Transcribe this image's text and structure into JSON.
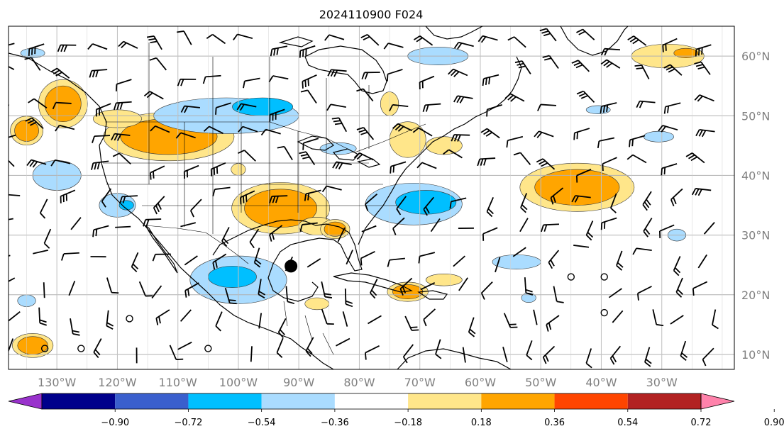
{
  "title": "2024110900 F024",
  "map": {
    "lon_range": [
      -138,
      -18
    ],
    "lat_range": [
      7.5,
      65
    ],
    "lon_ticks": [
      {
        "lon": -130,
        "label": "130°W"
      },
      {
        "lon": -120,
        "label": "120°W"
      },
      {
        "lon": -110,
        "label": "110°W"
      },
      {
        "lon": -100,
        "label": "100°W"
      },
      {
        "lon": -90,
        "label": "90°W"
      },
      {
        "lon": -80,
        "label": "80°W"
      },
      {
        "lon": -70,
        "label": "70°W"
      },
      {
        "lon": -60,
        "label": "60°W"
      },
      {
        "lon": -50,
        "label": "50°W"
      },
      {
        "lon": -40,
        "label": "40°W"
      },
      {
        "lon": -30,
        "label": "30°W"
      }
    ],
    "lat_ticks": [
      {
        "lat": 60,
        "label": "60°N"
      },
      {
        "lat": 50,
        "label": "50°N"
      },
      {
        "lat": 40,
        "label": "40°N"
      },
      {
        "lat": 30,
        "label": "30°N"
      },
      {
        "lat": 20,
        "label": "20°N"
      },
      {
        "lat": 10,
        "label": "10°N"
      }
    ],
    "grid": true,
    "storm_marker": {
      "lon": -91.3,
      "lat": 24.8
    }
  },
  "colorbar": {
    "boundaries": [
      "−0.90",
      "−0.72",
      "−0.54",
      "−0.36",
      "−0.18",
      "0.18",
      "0.36",
      "0.54",
      "0.72",
      "0.90"
    ],
    "colors": [
      "#9932cc",
      "#00008b",
      "#3a5fcd",
      "#00bfff",
      "#aadcff",
      "#ffffff",
      "#ffe68a",
      "#ffa500",
      "#ff4500",
      "#b22222",
      "#ff82ab"
    ],
    "extend": "both"
  },
  "anomalies": [
    {
      "lon": -111.5,
      "lat": 46.5,
      "rx": 8,
      "ry": 3,
      "level": 0.45,
      "edge": 0.25
    },
    {
      "lon": -93,
      "lat": 34.5,
      "rx": 6,
      "ry": 3.2,
      "level": 0.45,
      "edge": 0.25
    },
    {
      "lon": -87,
      "lat": 31.5,
      "rx": 3,
      "ry": 1.5,
      "level": 0.25
    },
    {
      "lon": -84,
      "lat": 31,
      "rx": 1.8,
      "ry": 1.2,
      "level": 0.45,
      "edge": 0.25
    },
    {
      "lon": -44,
      "lat": 38,
      "rx": 7,
      "ry": 3,
      "level": 0.45,
      "edge": 0.25
    },
    {
      "lon": -129,
      "lat": 52,
      "rx": 3,
      "ry": 3,
      "level": 0.45,
      "edge": 0.25
    },
    {
      "lon": -120,
      "lat": 49.5,
      "rx": 4,
      "ry": 1.5,
      "level": 0.25
    },
    {
      "lon": -135,
      "lat": 47.5,
      "rx": 2,
      "ry": 1.8,
      "level": 0.45,
      "edge": 0.25
    },
    {
      "lon": -134,
      "lat": 11.5,
      "rx": 2.5,
      "ry": 1.5,
      "level": 0.45,
      "edge": 0.25
    },
    {
      "lon": -72,
      "lat": 20.5,
      "rx": 2.5,
      "ry": 1.2,
      "level": 0.45,
      "edge": 0.25
    },
    {
      "lon": -66,
      "lat": 22.5,
      "rx": 3,
      "ry": 1,
      "level": 0.25
    },
    {
      "lon": -72,
      "lat": 46,
      "rx": 3,
      "ry": 3,
      "level": 0.25
    },
    {
      "lon": -66,
      "lat": 45,
      "rx": 3,
      "ry": 1.5,
      "level": 0.25
    },
    {
      "lon": -75,
      "lat": 52,
      "rx": 1.5,
      "ry": 2,
      "level": 0.25
    },
    {
      "lon": -29,
      "lat": 60,
      "rx": 6,
      "ry": 2,
      "level": 0.25
    },
    {
      "lon": -26,
      "lat": 60.5,
      "rx": 2,
      "ry": 0.8,
      "level": 0.45
    },
    {
      "lon": -100,
      "lat": 41,
      "rx": 1.2,
      "ry": 1,
      "level": 0.25
    },
    {
      "lon": -87,
      "lat": 18.5,
      "rx": 2,
      "ry": 1,
      "level": 0.25
    },
    {
      "lon": -102,
      "lat": 50,
      "rx": 12,
      "ry": 3,
      "level": -0.25
    },
    {
      "lon": -96,
      "lat": 51.5,
      "rx": 5,
      "ry": 1.5,
      "level": -0.45
    },
    {
      "lon": -67,
      "lat": 60,
      "rx": 5,
      "ry": 1.5,
      "level": -0.25
    },
    {
      "lon": -71,
      "lat": 35.2,
      "rx": 8,
      "ry": 3.5,
      "level": -0.25
    },
    {
      "lon": -69,
      "lat": 35.5,
      "rx": 5,
      "ry": 2,
      "level": -0.45
    },
    {
      "lon": -100,
      "lat": 22.5,
      "rx": 8,
      "ry": 4,
      "level": -0.25
    },
    {
      "lon": -101,
      "lat": 23,
      "rx": 4,
      "ry": 1.8,
      "level": -0.45
    },
    {
      "lon": -130,
      "lat": 40,
      "rx": 4,
      "ry": 2.5,
      "level": -0.25
    },
    {
      "lon": -120,
      "lat": 35,
      "rx": 3,
      "ry": 2,
      "level": -0.25
    },
    {
      "lon": -118.5,
      "lat": 35,
      "rx": 1.2,
      "ry": 0.8,
      "level": -0.45
    },
    {
      "lon": -83.5,
      "lat": 44.5,
      "rx": 3,
      "ry": 1,
      "level": -0.25
    },
    {
      "lon": -54,
      "lat": 25.5,
      "rx": 4,
      "ry": 1.2,
      "level": -0.25
    },
    {
      "lon": -30.5,
      "lat": 46.5,
      "rx": 2.5,
      "ry": 0.9,
      "level": -0.25
    },
    {
      "lon": -27.5,
      "lat": 30,
      "rx": 1.5,
      "ry": 1,
      "level": -0.25
    },
    {
      "lon": -40.5,
      "lat": 51,
      "rx": 2,
      "ry": 0.7,
      "level": -0.25
    },
    {
      "lon": -135,
      "lat": 19,
      "rx": 1.5,
      "ry": 1,
      "level": -0.25
    },
    {
      "lon": -52,
      "lat": 19.5,
      "rx": 1.2,
      "ry": 0.8,
      "level": -0.25
    },
    {
      "lon": -134,
      "lat": 60.5,
      "rx": 2,
      "ry": 0.8,
      "level": -0.25
    }
  ],
  "calm_markers": [
    {
      "lon": -132,
      "lat": 11
    },
    {
      "lon": -126,
      "lat": 11
    },
    {
      "lon": -105,
      "lat": 11
    },
    {
      "lon": -118,
      "lat": 16
    },
    {
      "lon": -45,
      "lat": 23
    },
    {
      "lon": -39.5,
      "lat": 23
    },
    {
      "lon": -39.5,
      "lat": 17
    }
  ]
}
